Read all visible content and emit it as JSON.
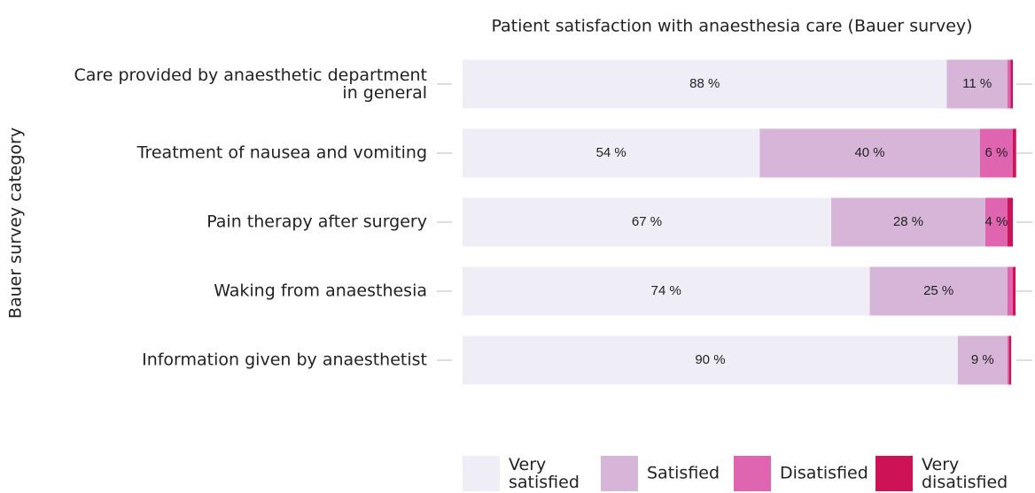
{
  "chart_data": {
    "type": "stacked_bar_horizontal",
    "title": "Patient satisfaction with anaesthesia care (Bauer survey)",
    "y_label": "Bauer survey category",
    "categories": [
      "Care provided by anaesthetic department\nin general",
      "Treatment of nausea and vomiting",
      "Pain therapy after surgery",
      "Waking from anaesthesia",
      "Information given by anaesthetist"
    ],
    "xlim": [
      0,
      100
    ],
    "series": [
      {
        "name": "Very\nsatisfied",
        "color": "#efedf5",
        "values": [
          88,
          54,
          67,
          74,
          90
        ],
        "value_labels": [
          "88 %",
          "54 %",
          "67 %",
          "74 %",
          "90 %"
        ]
      },
      {
        "name": "Satisfied",
        "color": "#d7b5d8",
        "values": [
          11,
          40,
          28,
          25,
          9
        ],
        "value_labels": [
          "11 %",
          "40 %",
          "28 %",
          "25 %",
          "9 %"
        ]
      },
      {
        "name": "Disatisfied",
        "color": "#df65b0",
        "values": [
          0.6,
          6,
          4,
          1,
          0.3
        ],
        "value_labels": [
          null,
          "6 %",
          "4 %",
          null,
          null
        ]
      },
      {
        "name": "Very\ndisatisfied",
        "color": "#ce1256",
        "values": [
          0.4,
          0.6,
          1,
          0.5,
          0.4
        ],
        "value_labels": [
          null,
          null,
          null,
          null,
          null
        ]
      }
    ]
  }
}
